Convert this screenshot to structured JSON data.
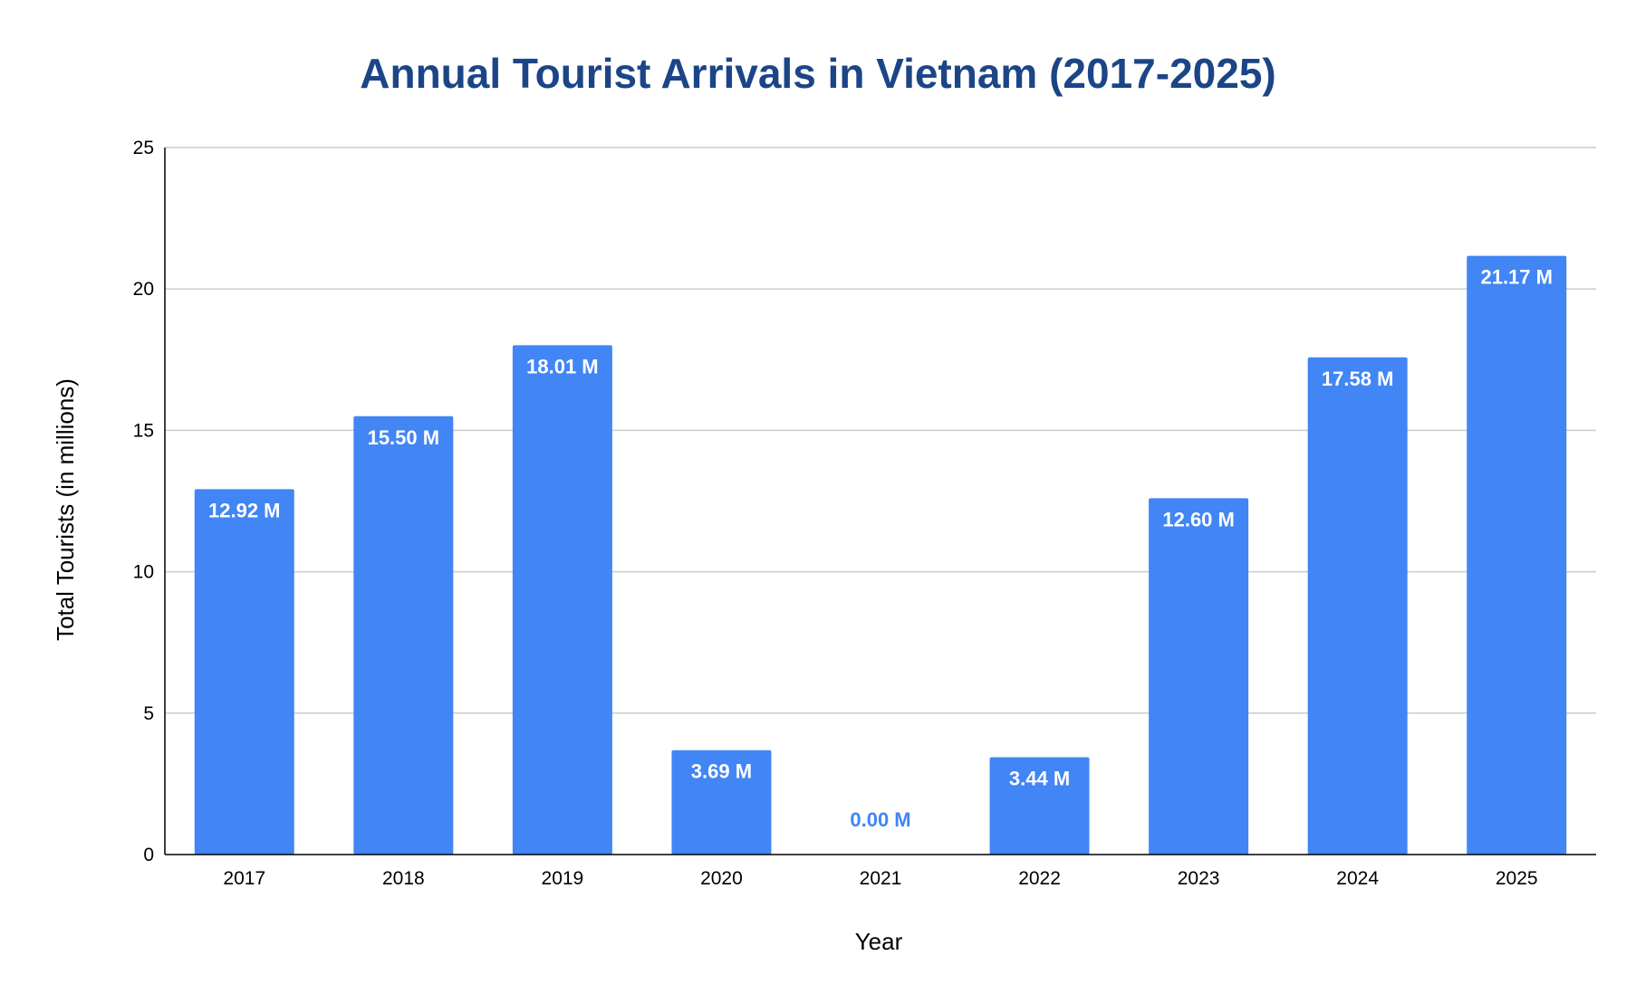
{
  "chart_data": {
    "type": "bar",
    "title": "Annual Tourist Arrivals in Vietnam (2017-2025)",
    "xlabel": "Year",
    "ylabel": "Total Tourists (in millions)",
    "categories": [
      "2017",
      "2018",
      "2019",
      "2020",
      "2021",
      "2022",
      "2023",
      "2024",
      "2025"
    ],
    "values": [
      12.92,
      15.5,
      18.01,
      3.69,
      0.0,
      3.44,
      12.6,
      17.58,
      21.17
    ],
    "data_labels": [
      "12.92 M",
      "15.50 M",
      "18.01 M",
      "3.69 M",
      "0.00 M",
      "3.44 M",
      "12.60 M",
      "17.58 M",
      "21.17 M"
    ],
    "ylim": [
      0,
      25
    ],
    "yticks": [
      "0",
      "5",
      "10",
      "15",
      "20",
      "25"
    ],
    "grid": true,
    "legend": "none",
    "colors": {
      "bar": "#4285f4",
      "title": "#1c4587",
      "label_inside": "#ffffff",
      "label_outside": "#4285f4",
      "grid": "#cccccc",
      "axis": "#000000"
    }
  }
}
